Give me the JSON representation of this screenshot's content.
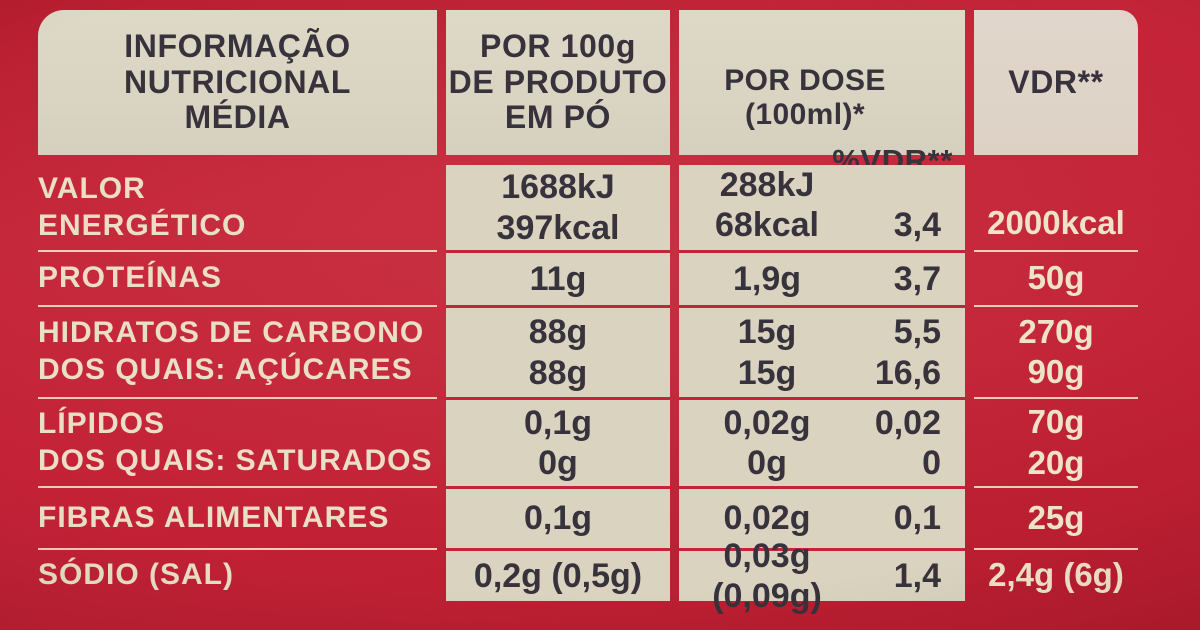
{
  "colors": {
    "background_red": "#c22136",
    "cream_cell": "#d9d3c0",
    "cream_header": "#ded8c7",
    "dark_text": "#37323b",
    "cream_text": "#eadfc6",
    "package_edge_pink": "#e9bec7"
  },
  "header": {
    "info_title": "INFORMAÇÃO\nNUTRICIONAL\nMÉDIA",
    "per_100g": "POR 100g\nDE PRODUTO\nEM PÓ",
    "per_dose": "POR DOSE (100ml)*",
    "pct_vdr": "%VDR**",
    "vdr": "VDR**"
  },
  "rows": [
    {
      "label": "VALOR\nENERGÉTICO",
      "per100g": "1688kJ\n397kcal",
      "dose": "288kJ\n68kcal",
      "pct": "3,4",
      "vdr": "2000kcal"
    },
    {
      "label": "PROTEÍNAS",
      "per100g": "11g",
      "dose": "1,9g",
      "pct": "3,7",
      "vdr": "50g"
    },
    {
      "label": "HIDRATOS DE CARBONO\nDOS QUAIS: AÇÚCARES",
      "per100g": "88g\n88g",
      "dose": "15g\n15g",
      "pct": "5,5\n16,6",
      "vdr": "270g\n90g"
    },
    {
      "label": "LÍPIDOS\nDOS QUAIS: SATURADOS",
      "per100g": "0,1g\n0g",
      "dose": "0,02g\n0g",
      "pct": "0,02\n0",
      "vdr": "70g\n20g"
    },
    {
      "label": "FIBRAS ALIMENTARES",
      "per100g": "0,1g",
      "dose": "0,02g",
      "pct": "0,1",
      "vdr": "25g"
    },
    {
      "label": "SÓDIO (SAL)",
      "per100g": "0,2g (0,5g)",
      "dose": "0,03g (0,09g)",
      "pct": "1,4",
      "vdr": "2,4g (6g)"
    }
  ]
}
